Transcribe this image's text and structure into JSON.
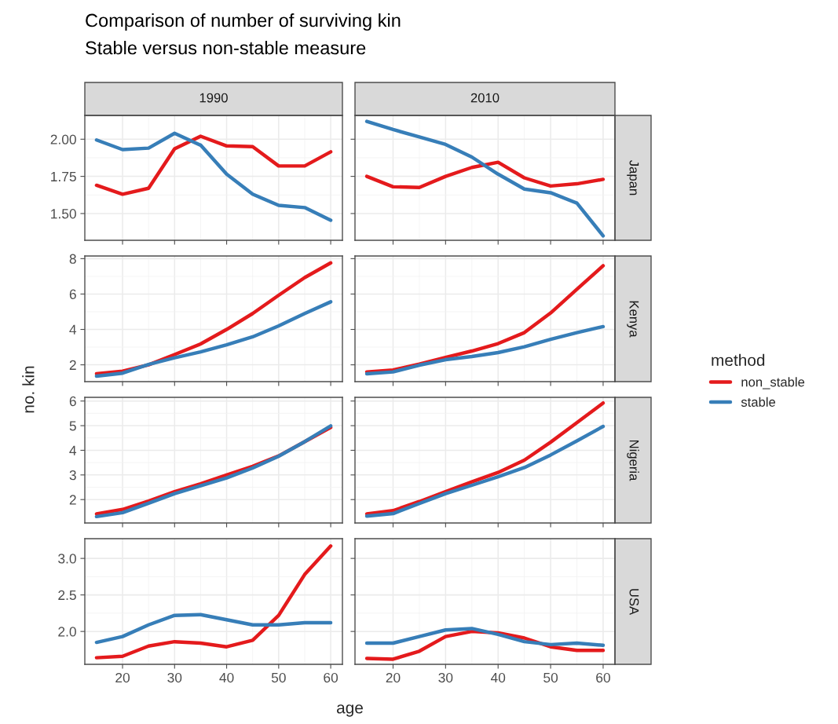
{
  "chart_data": [
    {
      "type": "line",
      "title": "1990",
      "annotations": [
        "Comparison of number of surviving kin",
        "Stable versus non-stable measure"
      ],
      "legend": "right",
      "legend_title": "method",
      "x": [
        15,
        20,
        25,
        30,
        35,
        40,
        45,
        50,
        55,
        60
      ],
      "xlim": [
        12.75,
        62.25
      ],
      "xticks": [
        20,
        30,
        40,
        50,
        60
      ],
      "ylim": [
        1.32,
        2.16
      ],
      "yticks": [
        {
          "value": 1.5,
          "label": "1.50"
        },
        {
          "value": 1.75,
          "label": "1.75"
        },
        {
          "value": 2.0,
          "label": "2.00"
        }
      ],
      "grid": true,
      "tick_labels": "y",
      "series": [
        {
          "name": "non_stable",
          "color": "#e41a1c",
          "values": [
            1.69,
            1.63,
            1.67,
            1.935,
            2.02,
            1.955,
            1.95,
            1.82,
            1.82,
            1.915
          ]
        },
        {
          "name": "stable",
          "color": "#377eb8",
          "values": [
            1.995,
            1.93,
            1.94,
            2.04,
            1.96,
            1.765,
            1.63,
            1.555,
            1.54,
            1.455
          ]
        }
      ]
    },
    {
      "type": "line",
      "title": "2010",
      "y2label": "Japan",
      "x": [
        15,
        20,
        25,
        30,
        35,
        40,
        45,
        50,
        55,
        60
      ],
      "xlim": [
        12.75,
        62.25
      ],
      "xticks": [
        20,
        30,
        40,
        50,
        60
      ],
      "ylim": [
        1.32,
        2.16
      ],
      "yticks": [
        1.5,
        1.75,
        2.0
      ],
      "grid": true,
      "tick_labels": false,
      "series": [
        {
          "color": "#e41a1c",
          "values": [
            1.75,
            1.68,
            1.675,
            1.75,
            1.81,
            1.845,
            1.74,
            1.685,
            1.7,
            1.73
          ]
        },
        {
          "color": "#377eb8",
          "values": [
            2.12,
            2.065,
            2.015,
            1.965,
            1.88,
            1.765,
            1.665,
            1.64,
            1.57,
            1.35
          ]
        }
      ]
    },
    {
      "type": "line",
      "ylabel": "no. kin",
      "x": [
        15,
        20,
        25,
        30,
        35,
        40,
        45,
        50,
        55,
        60
      ],
      "xlim": [
        12.75,
        62.25
      ],
      "xticks": [
        20,
        30,
        40,
        50,
        60
      ],
      "ylim": [
        1.05,
        8.15
      ],
      "yticks": [
        2,
        4,
        6,
        8
      ],
      "grid": true,
      "tick_labels": "y",
      "series": [
        {
          "color": "#e41a1c",
          "values": [
            1.49,
            1.64,
            2.0,
            2.58,
            3.18,
            4.0,
            4.9,
            5.93,
            6.93,
            7.76
          ]
        },
        {
          "color": "#377eb8",
          "values": [
            1.36,
            1.53,
            2.02,
            2.4,
            2.73,
            3.13,
            3.58,
            4.2,
            4.9,
            5.56
          ]
        }
      ]
    },
    {
      "type": "line",
      "y2label": "Kenya",
      "x": [
        15,
        20,
        25,
        30,
        35,
        40,
        45,
        50,
        55,
        60
      ],
      "xlim": [
        12.75,
        62.25
      ],
      "xticks": [
        20,
        30,
        40,
        50,
        60
      ],
      "ylim": [
        1.05,
        8.15
      ],
      "yticks": [
        2,
        4,
        6,
        8
      ],
      "grid": true,
      "tick_labels": false,
      "series": [
        {
          "color": "#e41a1c",
          "values": [
            1.6,
            1.71,
            2.04,
            2.42,
            2.78,
            3.2,
            3.82,
            4.93,
            6.27,
            7.6
          ]
        },
        {
          "color": "#377eb8",
          "values": [
            1.49,
            1.6,
            1.98,
            2.29,
            2.47,
            2.69,
            3.02,
            3.44,
            3.82,
            4.16
          ]
        }
      ]
    },
    {
      "type": "line",
      "x": [
        15,
        20,
        25,
        30,
        35,
        40,
        45,
        50,
        55,
        60
      ],
      "xlim": [
        12.75,
        62.25
      ],
      "xticks": [
        20,
        30,
        40,
        50,
        60
      ],
      "ylim": [
        1.05,
        6.15
      ],
      "yticks": [
        2,
        3,
        4,
        5,
        6
      ],
      "grid": true,
      "tick_labels": "y",
      "series": [
        {
          "color": "#e41a1c",
          "values": [
            1.42,
            1.6,
            1.94,
            2.32,
            2.64,
            3.0,
            3.35,
            3.77,
            4.35,
            4.93
          ]
        },
        {
          "color": "#377eb8",
          "values": [
            1.31,
            1.47,
            1.85,
            2.24,
            2.56,
            2.88,
            3.28,
            3.76,
            4.35,
            4.99
          ]
        }
      ]
    },
    {
      "type": "line",
      "y2label": "Nigeria",
      "x": [
        15,
        20,
        25,
        30,
        35,
        40,
        45,
        50,
        55,
        60
      ],
      "xlim": [
        12.75,
        62.25
      ],
      "xticks": [
        20,
        30,
        40,
        50,
        60
      ],
      "ylim": [
        1.05,
        6.15
      ],
      "yticks": [
        2,
        3,
        4,
        5,
        6
      ],
      "grid": true,
      "tick_labels": false,
      "series": [
        {
          "color": "#e41a1c",
          "values": [
            1.42,
            1.55,
            1.92,
            2.32,
            2.72,
            3.1,
            3.6,
            4.33,
            5.12,
            5.92
          ]
        },
        {
          "color": "#377eb8",
          "values": [
            1.33,
            1.43,
            1.84,
            2.24,
            2.58,
            2.93,
            3.3,
            3.81,
            4.38,
            4.97
          ]
        }
      ]
    },
    {
      "type": "line",
      "xlabel": "age",
      "x": [
        15,
        20,
        25,
        30,
        35,
        40,
        45,
        50,
        55,
        60
      ],
      "xlim": [
        12.75,
        62.25
      ],
      "xticks": [
        20,
        30,
        40,
        50,
        60
      ],
      "ylim": [
        1.55,
        3.27
      ],
      "yticks": [
        {
          "value": 2.0,
          "label": "2.0"
        },
        {
          "value": 2.5,
          "label": "2.5"
        },
        {
          "value": 3.0,
          "label": "3.0"
        }
      ],
      "grid": true,
      "series": [
        {
          "color": "#e41a1c",
          "values": [
            1.64,
            1.66,
            1.8,
            1.86,
            1.84,
            1.79,
            1.88,
            2.22,
            2.78,
            3.17
          ]
        },
        {
          "color": "#377eb8",
          "values": [
            1.85,
            1.93,
            2.09,
            2.22,
            2.23,
            2.16,
            2.09,
            2.09,
            2.12,
            2.12
          ]
        }
      ]
    },
    {
      "type": "line",
      "y2label": "USA",
      "x": [
        15,
        20,
        25,
        30,
        35,
        40,
        45,
        50,
        55,
        60
      ],
      "xlim": [
        12.75,
        62.25
      ],
      "xticks": [
        20,
        30,
        40,
        50,
        60
      ],
      "ylim": [
        1.55,
        3.27
      ],
      "yticks": [
        2.0,
        2.5,
        3.0
      ],
      "grid": true,
      "tick_labels": "x",
      "series": [
        {
          "color": "#e41a1c",
          "values": [
            1.63,
            1.62,
            1.73,
            1.93,
            2.0,
            1.98,
            1.91,
            1.79,
            1.74,
            1.74
          ]
        },
        {
          "color": "#377eb8",
          "values": [
            1.84,
            1.84,
            1.93,
            2.02,
            2.04,
            1.96,
            1.86,
            1.82,
            1.84,
            1.81
          ]
        }
      ]
    }
  ]
}
